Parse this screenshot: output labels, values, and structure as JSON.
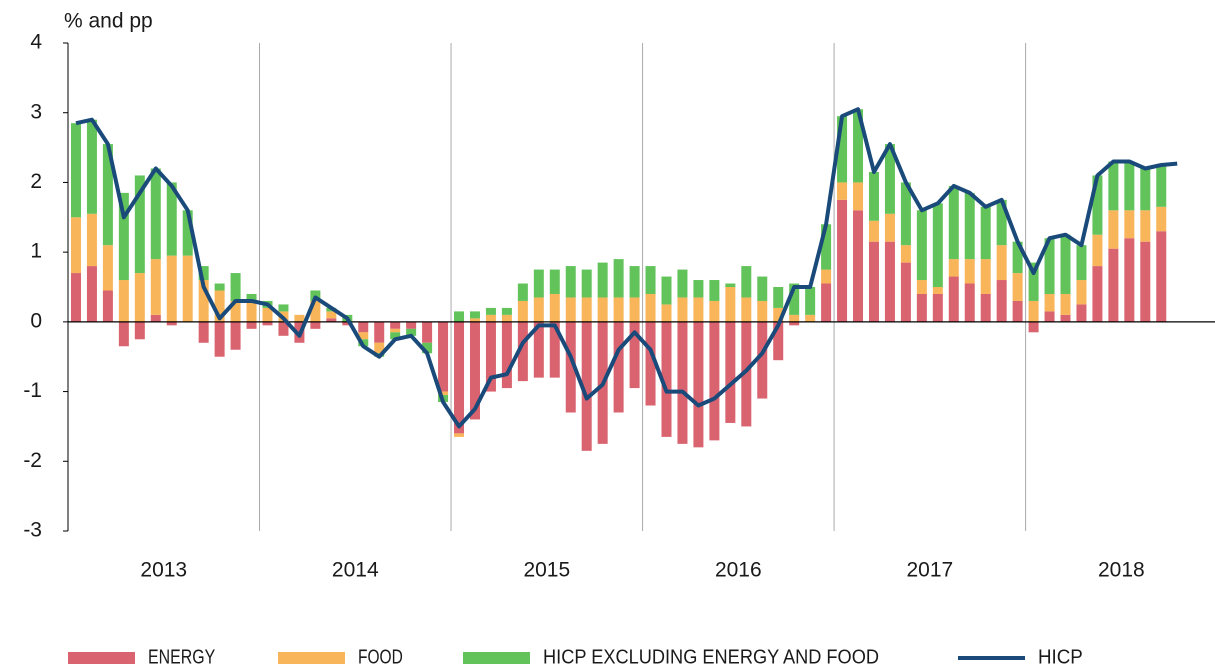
{
  "chart_data": {
    "type": "bar-line",
    "y_axis_label": "% and pp",
    "year_labels": [
      "2013",
      "2014",
      "2015",
      "2016",
      "2017",
      "2018"
    ],
    "ylim": [
      -3,
      4
    ],
    "yticks": [
      -3,
      -2,
      -1,
      0,
      1,
      2,
      3,
      4
    ],
    "series": [
      {
        "name": "ENERGY",
        "color": "#d9636f",
        "kind": "bar",
        "values": [
          0.7,
          0.8,
          0.45,
          -0.35,
          -0.25,
          0.1,
          -0.05,
          0,
          -0.3,
          -0.5,
          -0.4,
          -0.1,
          -0.05,
          -0.2,
          -0.3,
          -0.1,
          0.05,
          -0.05,
          -0.15,
          -0.3,
          -0.1,
          -0.1,
          -0.3,
          -1.0,
          -1.6,
          -1.4,
          -1.0,
          -0.95,
          -0.85,
          -0.8,
          -0.8,
          -1.3,
          -1.85,
          -1.75,
          -1.3,
          -0.95,
          -1.2,
          -1.65,
          -1.75,
          -1.8,
          -1.7,
          -1.45,
          -1.5,
          -1.1,
          -0.55,
          -0.05,
          0,
          0.55,
          1.75,
          1.6,
          1.15,
          1.15,
          0.85,
          0.4,
          0.4,
          0.65,
          0.55,
          0.4,
          0.6,
          0.3,
          -0.15,
          0.15,
          0.1,
          0.25,
          0.8,
          1.05,
          1.2,
          1.15,
          1.3,
          null
        ]
      },
      {
        "name": "FOOD",
        "color": "#f9b55a",
        "kind": "bar",
        "values": [
          0.8,
          0.75,
          0.65,
          0.6,
          0.7,
          0.8,
          0.95,
          0.95,
          0.6,
          0.45,
          0.3,
          0.3,
          0.2,
          0.15,
          0.1,
          0.3,
          0.1,
          0,
          -0.1,
          -0.15,
          -0.05,
          0,
          0,
          -0.05,
          -0.05,
          0.05,
          0.1,
          0.1,
          0.3,
          0.35,
          0.4,
          0.35,
          0.35,
          0.35,
          0.35,
          0.35,
          0.4,
          0.25,
          0.35,
          0.35,
          0.3,
          0.5,
          0.35,
          0.3,
          0.2,
          0.1,
          0.1,
          0.2,
          0.25,
          0.4,
          0.3,
          0.4,
          0.25,
          0.2,
          0.1,
          0.25,
          0.35,
          0.5,
          0.5,
          0.4,
          0.3,
          0.25,
          0.3,
          0.35,
          0.45,
          0.55,
          0.4,
          0.45,
          0.35,
          null
        ]
      },
      {
        "name": "HICP EXCLUDING ENERGY AND FOOD",
        "color": "#62c35b",
        "kind": "bar",
        "values": [
          1.35,
          1.35,
          1.45,
          1.25,
          1.4,
          1.3,
          1.05,
          0.65,
          0.2,
          0.1,
          0.4,
          0.1,
          0.1,
          0.1,
          0,
          0.15,
          0.05,
          0.1,
          -0.1,
          -0.05,
          -0.1,
          -0.1,
          -0.15,
          -0.1,
          0.15,
          0.1,
          0.1,
          0.1,
          0.25,
          0.4,
          0.35,
          0.45,
          0.4,
          0.5,
          0.55,
          0.45,
          0.4,
          0.4,
          0.4,
          0.25,
          0.3,
          0.05,
          0.45,
          0.35,
          0.3,
          0.45,
          0.4,
          0.65,
          0.95,
          1.05,
          0.7,
          1.0,
          0.9,
          1.0,
          1.2,
          1.05,
          0.95,
          0.75,
          0.65,
          0.45,
          0.55,
          0.8,
          0.85,
          0.5,
          0.85,
          0.7,
          0.7,
          0.6,
          0.6,
          null
        ]
      },
      {
        "name": "HICP",
        "color": "#1a4a7a",
        "kind": "line",
        "values": [
          2.85,
          2.9,
          2.55,
          1.5,
          1.85,
          2.2,
          1.95,
          1.6,
          0.5,
          0.05,
          0.3,
          0.3,
          0.25,
          0.05,
          -0.2,
          0.35,
          0.2,
          0.05,
          -0.35,
          -0.5,
          -0.25,
          -0.2,
          -0.45,
          -1.15,
          -1.5,
          -1.25,
          -0.8,
          -0.75,
          -0.3,
          -0.05,
          -0.05,
          -0.5,
          -1.1,
          -0.9,
          -0.4,
          -0.15,
          -0.4,
          -1.0,
          -1.0,
          -1.2,
          -1.1,
          -0.9,
          -0.7,
          -0.45,
          -0.05,
          0.5,
          0.5,
          1.4,
          2.95,
          3.05,
          2.15,
          2.55,
          2.0,
          1.6,
          1.7,
          1.95,
          1.85,
          1.65,
          1.75,
          1.15,
          0.7,
          1.2,
          1.25,
          1.1,
          2.1,
          2.3,
          2.3,
          2.2,
          2.25,
          2.27
        ]
      }
    ],
    "grid": true
  }
}
